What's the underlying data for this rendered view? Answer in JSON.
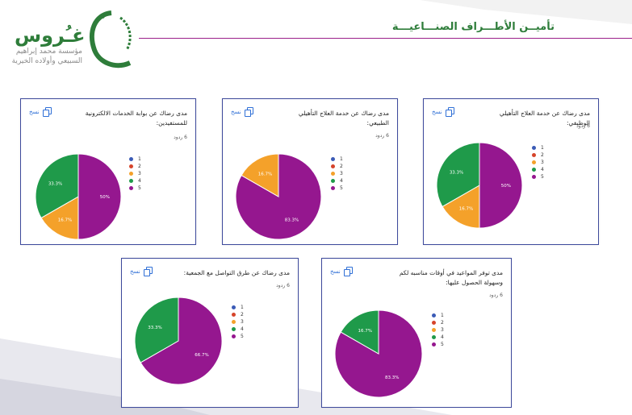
{
  "header": {
    "title": "تأميــن الأطـــراف الصنـــاعيـــة",
    "logo_word": "غـُروس",
    "logo_line1": "مؤسسة محمد إبراهيم",
    "logo_line2": "السبيعي وأولاده الخيرية"
  },
  "copy_label": "نسخ",
  "legend_labels": [
    "1",
    "2",
    "3",
    "4",
    "5"
  ],
  "colors": {
    "1": "#3b5bb6",
    "2": "#d6442b",
    "3": "#f4a12a",
    "4": "#1f9a4a",
    "5": "#95178f",
    "border": "#3e4a9c",
    "accent": "#9b1f8a"
  },
  "chart_data": [
    {
      "type": "pie",
      "title": "مدى رضاك عن خدمة العلاج التأهيلي الوظيفي:",
      "responses": "6 ردود",
      "slices": [
        {
          "label": "5",
          "value": 50.0,
          "text": "50%"
        },
        {
          "label": "3",
          "value": 16.7,
          "text": "16.7%"
        },
        {
          "label": "4",
          "value": 33.3,
          "text": "33.3%"
        }
      ]
    },
    {
      "type": "pie",
      "title": "مدى رضاك عن خدمة العلاج التأهيلي الطبيعي:",
      "responses": "6 ردود",
      "slices": [
        {
          "label": "5",
          "value": 83.3,
          "text": "83.3%"
        },
        {
          "label": "3",
          "value": 16.7,
          "text": "16.7%"
        }
      ]
    },
    {
      "type": "pie",
      "title": "مدى رضاك عن بوابة الخدمات الالكترونية للمستفيدين:",
      "responses": "6 ردود",
      "slices": [
        {
          "label": "5",
          "value": 50.0,
          "text": "50%"
        },
        {
          "label": "3",
          "value": 16.7,
          "text": "16.7%"
        },
        {
          "label": "4",
          "value": 33.3,
          "text": "33.3%"
        }
      ]
    },
    {
      "type": "pie",
      "title": "مدى توفر المواعيد في أوقات مناسبه لكم وسهولة الحصول عليها:",
      "responses": "6 ردود",
      "slices": [
        {
          "label": "5",
          "value": 83.3,
          "text": "83.3%"
        },
        {
          "label": "4",
          "value": 16.7,
          "text": "16.7%"
        }
      ]
    },
    {
      "type": "pie",
      "title": "مدى رضاك عن طرق التواصل مع الجمعية:",
      "responses": "6 ردود",
      "slices": [
        {
          "label": "5",
          "value": 66.7,
          "text": "66.7%"
        },
        {
          "label": "4",
          "value": 33.3,
          "text": "33.3%"
        }
      ]
    }
  ]
}
